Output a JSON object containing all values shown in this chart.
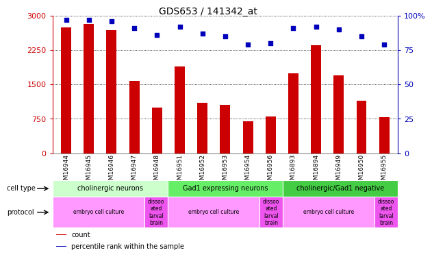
{
  "title": "GDS653 / 141342_at",
  "samples": [
    "GSM16944",
    "GSM16945",
    "GSM16946",
    "GSM16947",
    "GSM16948",
    "GSM16951",
    "GSM16952",
    "GSM16953",
    "GSM16954",
    "GSM16956",
    "GSM16893",
    "GSM16894",
    "GSM16949",
    "GSM16950",
    "GSM16955"
  ],
  "counts": [
    2750,
    2820,
    2680,
    1580,
    1000,
    1900,
    1100,
    1050,
    700,
    800,
    1750,
    2350,
    1700,
    1150,
    780
  ],
  "percentiles": [
    97,
    97,
    96,
    91,
    86,
    92,
    87,
    85,
    79,
    80,
    91,
    92,
    90,
    85,
    79
  ],
  "bar_color": "#cc0000",
  "dot_color": "#0000bb",
  "ylim_left": [
    0,
    3000
  ],
  "ylim_right": [
    0,
    100
  ],
  "yticks_left": [
    0,
    750,
    1500,
    2250,
    3000
  ],
  "yticks_right": [
    0,
    25,
    50,
    75,
    100
  ],
  "cell_type_groups": [
    {
      "label": "cholinergic neurons",
      "start": 0,
      "end": 4,
      "color": "#ccffcc"
    },
    {
      "label": "Gad1 expressing neurons",
      "start": 5,
      "end": 9,
      "color": "#66ee66"
    },
    {
      "label": "cholinergic/Gad1 negative",
      "start": 10,
      "end": 14,
      "color": "#44cc44"
    }
  ],
  "protocol_groups": [
    {
      "label": "embryo cell culture",
      "start": 0,
      "end": 3,
      "color": "#ff99ff"
    },
    {
      "label": "dissoo\nated\nlarval\nbrain",
      "start": 4,
      "end": 4,
      "color": "#ee55ee"
    },
    {
      "label": "embryo cell culture",
      "start": 5,
      "end": 8,
      "color": "#ff99ff"
    },
    {
      "label": "dissoo\nated\nlarval\nbrain",
      "start": 9,
      "end": 9,
      "color": "#ee55ee"
    },
    {
      "label": "embryo cell culture",
      "start": 10,
      "end": 13,
      "color": "#ff99ff"
    },
    {
      "label": "dissoo\nated\nlarval\nbrain",
      "start": 14,
      "end": 14,
      "color": "#ee55ee"
    }
  ],
  "legend_items": [
    {
      "label": "count",
      "color": "#cc0000"
    },
    {
      "label": "percentile rank within the sample",
      "color": "#0000bb"
    }
  ],
  "bg_color": "#e8e8e8"
}
